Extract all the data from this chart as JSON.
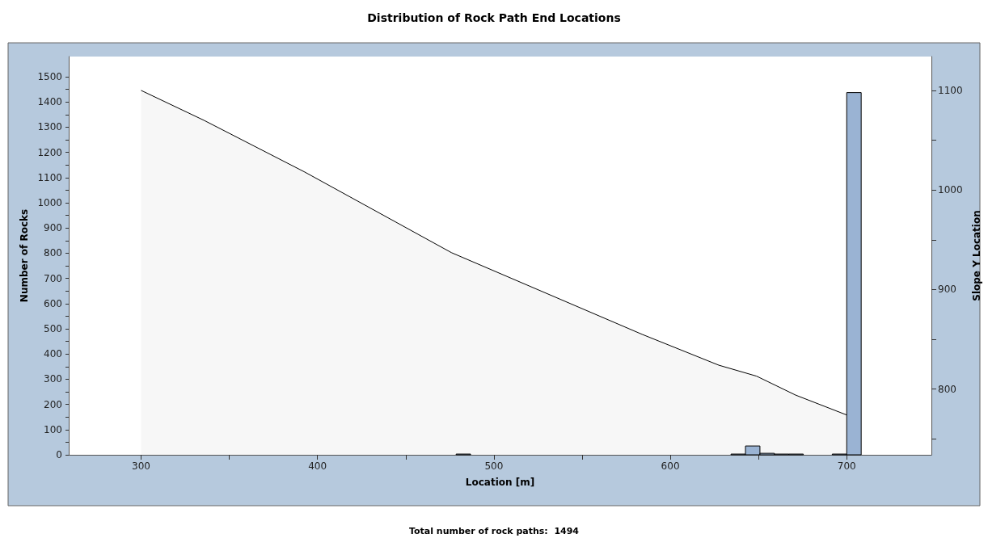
{
  "chart_data": {
    "type": "histogram",
    "title": "Distribution of Rock Path End Locations",
    "xlabel": "Location [m]",
    "ylabel": "Number of Rocks",
    "y2label": "Slope Y Location",
    "annotations": [
      "Total number of rock paths:  1494"
    ],
    "grid": false,
    "xlim": [
      259,
      748
    ],
    "xticks": [
      300,
      {
        "value": 350,
        "label": null
      },
      400,
      {
        "value": 450,
        "label": null
      },
      500,
      {
        "value": 550,
        "label": null
      },
      600,
      {
        "value": 650,
        "label": null
      },
      700
    ],
    "ylim": [
      0,
      1580
    ],
    "yticks": [
      0,
      {
        "value": 50,
        "label": null
      },
      100,
      {
        "value": 150,
        "label": null
      },
      200,
      {
        "value": 250,
        "label": null
      },
      300,
      {
        "value": 350,
        "label": null
      },
      400,
      {
        "value": 450,
        "label": null
      },
      500,
      {
        "value": 550,
        "label": null
      },
      600,
      {
        "value": 650,
        "label": null
      },
      700,
      {
        "value": 750,
        "label": null
      },
      800,
      {
        "value": 850,
        "label": null
      },
      900,
      {
        "value": 950,
        "label": null
      },
      1000,
      {
        "value": 1050,
        "label": null
      },
      1100,
      {
        "value": 1150,
        "label": null
      },
      1200,
      {
        "value": 1250,
        "label": null
      },
      1300,
      {
        "value": 1350,
        "label": null
      },
      1400,
      {
        "value": 1450,
        "label": null
      },
      1500
    ],
    "y2lim": [
      734,
      1134
    ],
    "y2ticks": [
      {
        "value": 750,
        "label": null
      },
      800,
      {
        "value": 850,
        "label": null
      },
      900,
      {
        "value": 950,
        "label": null
      },
      1000,
      {
        "value": 1050,
        "label": null
      },
      1100
    ],
    "series": [
      {
        "type": "area",
        "axis": "y2",
        "color": "#f7f7f7",
        "x": [
          300,
          335.6,
          392.8,
          476,
          584,
          627.5,
          648.9,
          671,
          700
        ],
        "values": [
          1100,
          1070,
          1018,
          937,
          855,
          824,
          813,
          794,
          774
        ]
      },
      {
        "color": "#9ab3d3",
        "bins": [
          478.6,
          486.8,
          495,
          503.2,
          511.4,
          519.6,
          527.8,
          536,
          544.2,
          552.4,
          560.6,
          568.8,
          577,
          585.2,
          593.4,
          601.6,
          609.8,
          618,
          626.2,
          634.4,
          642.6,
          650.8,
          659,
          667.2,
          675.4,
          683.6,
          691.8,
          700,
          708.2
        ],
        "values": [
          3,
          0,
          0,
          0,
          0,
          0,
          0,
          0,
          0,
          0,
          0,
          0,
          0,
          0,
          0,
          0,
          0,
          0,
          0,
          3,
          35,
          6,
          3,
          3,
          0,
          0,
          3,
          1437
        ]
      }
    ]
  }
}
